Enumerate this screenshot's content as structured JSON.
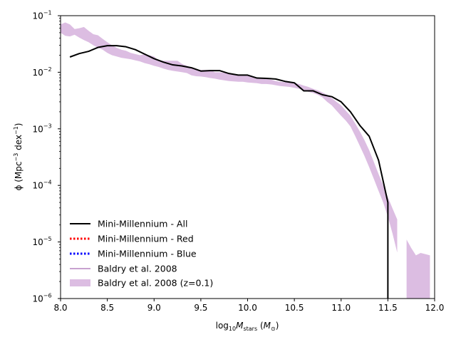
{
  "chart_data": {
    "type": "line",
    "xlabel_prefix": "log",
    "xlabel_sub": "10",
    "xlabel_var": "M",
    "xlabel_var_sub": "stars",
    "xlabel_unit_open": " (",
    "xlabel_unit_var": "M",
    "xlabel_unit_sub": "⊙",
    "xlabel_unit_close": ")",
    "ylabel_main": "ϕ (Mpc",
    "ylabel_sup1": "−3",
    "ylabel_mid": " dex",
    "ylabel_sup2": "−1",
    "ylabel_close": ")",
    "xlim": [
      8.0,
      12.0
    ],
    "ylim": [
      1e-06,
      0.1
    ],
    "yscale": "log",
    "xticks": [
      "8.0",
      "8.5",
      "9.0",
      "9.5",
      "10.0",
      "10.5",
      "11.0",
      "11.5",
      "12.0"
    ],
    "xtick_values": [
      8.0,
      8.5,
      9.0,
      9.5,
      10.0,
      10.5,
      11.0,
      11.5,
      12.0
    ],
    "yticks": [
      {
        "base": "10",
        "exp": "−6",
        "value": 1e-06
      },
      {
        "base": "10",
        "exp": "−5",
        "value": 1e-05
      },
      {
        "base": "10",
        "exp": "−4",
        "value": 0.0001
      },
      {
        "base": "10",
        "exp": "−3",
        "value": 0.001
      },
      {
        "base": "10",
        "exp": "−2",
        "value": 0.01
      },
      {
        "base": "10",
        "exp": "−1",
        "value": 0.1
      }
    ],
    "legend": {
      "placement": "lower-left",
      "entries": [
        {
          "label": "Mini-Millennium - All",
          "style": "solid-line",
          "color": "#000000"
        },
        {
          "label": "Mini-Millennium - Red",
          "style": "dotted-line",
          "color": "#ff0000"
        },
        {
          "label": "Mini-Millennium - Blue",
          "style": "dotted-line",
          "color": "#0000ff"
        },
        {
          "label": "Baldry et al. 2008",
          "style": "solid-line",
          "color": "#c8a2d0"
        },
        {
          "label": "Baldry et al. 2008 (z=0.1)",
          "style": "filled-band",
          "color": "#dcbde2"
        }
      ]
    },
    "series": [
      {
        "name": "Mini-Millennium - All",
        "color": "#000000",
        "x": [
          8.1,
          8.2,
          8.3,
          8.4,
          8.5,
          8.6,
          8.7,
          8.8,
          8.9,
          9.0,
          9.1,
          9.2,
          9.3,
          9.4,
          9.5,
          9.6,
          9.7,
          9.8,
          9.9,
          10.0,
          10.1,
          10.2,
          10.3,
          10.4,
          10.5,
          10.6,
          10.7,
          10.8,
          10.9,
          11.0,
          11.1,
          11.2,
          11.3,
          11.4,
          11.5,
          11.5
        ],
        "y": [
          0.0186,
          0.0214,
          0.0234,
          0.0275,
          0.0295,
          0.0295,
          0.0282,
          0.0251,
          0.0209,
          0.0174,
          0.0151,
          0.0135,
          0.0129,
          0.012,
          0.0105,
          0.0107,
          0.0107,
          0.0095,
          0.0089,
          0.0089,
          0.0079,
          0.0078,
          0.0076,
          0.0069,
          0.0065,
          0.0047,
          0.0047,
          0.004,
          0.0037,
          0.003,
          0.002,
          0.00115,
          0.00074,
          0.00028,
          5e-05,
          1e-06
        ]
      },
      {
        "name": "Mini-Millennium - Red",
        "color": "#ff0000",
        "x": [],
        "y": []
      },
      {
        "name": "Mini-Millennium - Blue",
        "color": "#0000ff",
        "x": [],
        "y": []
      }
    ],
    "band": {
      "name": "Baldry et al. 2008 (z=0.1)",
      "color": "#dcbde2",
      "x": [
        8.0,
        8.05,
        8.1,
        8.15,
        8.2,
        8.25,
        8.3,
        8.35,
        8.4,
        8.45,
        8.5,
        8.55,
        8.6,
        8.65,
        8.7,
        8.75,
        8.8,
        8.85,
        8.9,
        8.95,
        9.0,
        9.05,
        9.1,
        9.15,
        9.2,
        9.25,
        9.3,
        9.35,
        9.4,
        9.45,
        9.5,
        9.55,
        9.6,
        9.65,
        9.7,
        9.75,
        9.8,
        9.85,
        9.9,
        9.95,
        10.0,
        10.05,
        10.1,
        10.15,
        10.2,
        10.25,
        10.3,
        10.35,
        10.4,
        10.45,
        10.5,
        10.55,
        10.6,
        10.65,
        10.7,
        10.75,
        10.8,
        10.85,
        10.9,
        10.95,
        11.0,
        11.05,
        11.1,
        11.15,
        11.2,
        11.25,
        11.3,
        11.35,
        11.4,
        11.45,
        11.5,
        11.55,
        11.6,
        11.65,
        11.7,
        11.75,
        11.8,
        11.85,
        11.9,
        11.95
      ],
      "upper": [
        0.07,
        0.076,
        0.07,
        0.058,
        0.06,
        0.063,
        0.054,
        0.047,
        0.045,
        0.039,
        0.034,
        0.03,
        0.027,
        0.025,
        0.024,
        0.022,
        0.021,
        0.02,
        0.021,
        0.02,
        0.019,
        0.016,
        0.016,
        0.016,
        0.016,
        0.016,
        0.014,
        0.013,
        0.012,
        0.011,
        0.011,
        0.011,
        0.011,
        0.01,
        0.01,
        0.0098,
        0.0093,
        0.0091,
        0.009,
        0.0088,
        0.0087,
        0.0084,
        0.0079,
        0.0077,
        0.0076,
        0.0074,
        0.007,
        0.0068,
        0.0067,
        0.0066,
        0.0065,
        0.0062,
        0.0058,
        0.0055,
        0.0051,
        0.0048,
        0.0044,
        0.004,
        0.0035,
        0.003,
        0.0026,
        0.0021,
        0.0017,
        0.00125,
        0.0009,
        0.00063,
        0.00042,
        0.00026,
        0.00016,
        0.0001,
        6.2e-05,
        3.9e-05,
        2.5e-05,
        1.6e-05,
        1.1e-05,
        7.8e-06,
        5.8e-06,
        6.4e-06,
        6.1e-06,
        5.8e-06
      ],
      "lower": [
        0.05,
        0.044,
        0.043,
        0.046,
        0.041,
        0.037,
        0.034,
        0.03,
        0.027,
        0.025,
        0.022,
        0.02,
        0.019,
        0.018,
        0.0175,
        0.017,
        0.0162,
        0.0155,
        0.0145,
        0.0138,
        0.013,
        0.0124,
        0.0116,
        0.011,
        0.0106,
        0.0103,
        0.01,
        0.0097,
        0.0088,
        0.0085,
        0.0084,
        0.0082,
        0.0079,
        0.0077,
        0.0074,
        0.0072,
        0.007,
        0.0069,
        0.0068,
        0.0068,
        0.0066,
        0.0065,
        0.0064,
        0.0062,
        0.0062,
        0.0061,
        0.0059,
        0.0057,
        0.0056,
        0.0055,
        0.0053,
        0.0051,
        0.0048,
        0.0045,
        0.0043,
        0.004,
        0.0036,
        0.003,
        0.0026,
        0.0021,
        0.0017,
        0.0014,
        0.0011,
        0.00075,
        0.0005,
        0.00033,
        0.00021,
        0.00013,
        8e-05,
        5e-05,
        2.8e-05,
        1.4e-05,
        6.5e-06,
        3.2e-06,
        1e-06,
        1e-06,
        1e-06,
        1e-06,
        1e-06,
        1e-06
      ]
    },
    "band_gap": [
      11.62,
      11.68
    ]
  }
}
